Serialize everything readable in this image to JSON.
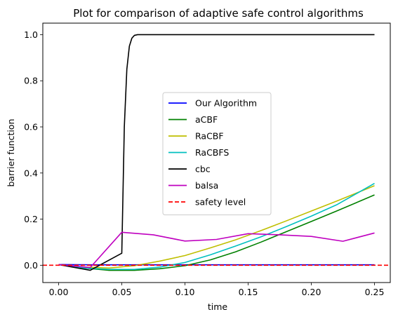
{
  "chart_data": {
    "type": "line",
    "title": "Plot for comparison of adaptive safe control algorithms",
    "xlabel": "time",
    "ylabel": "barrier function",
    "xlim": [
      -0.0125,
      0.2625
    ],
    "ylim": [
      -0.075,
      1.05
    ],
    "xticks": [
      0.0,
      0.05,
      0.1,
      0.15,
      0.2,
      0.25
    ],
    "xtick_labels": [
      "0.00",
      "0.05",
      "0.10",
      "0.15",
      "0.20",
      "0.25"
    ],
    "yticks": [
      0.0,
      0.2,
      0.4,
      0.6,
      0.8,
      1.0
    ],
    "ytick_labels": [
      "0.0",
      "0.2",
      "0.4",
      "0.6",
      "0.8",
      "1.0"
    ],
    "grid": false,
    "legend_position": "center",
    "series": [
      {
        "name": "Our Algorithm",
        "color": "#0000ff",
        "style": "solid",
        "x": [
          0.0,
          0.025,
          0.05,
          0.075,
          0.1,
          0.125,
          0.15,
          0.175,
          0.2,
          0.225,
          0.25
        ],
        "y": [
          0.003,
          0.002,
          0.002,
          0.002,
          0.002,
          0.002,
          0.002,
          0.002,
          0.002,
          0.002,
          0.002
        ]
      },
      {
        "name": "aCBF",
        "color": "#008000",
        "style": "solid",
        "x": [
          0.0,
          0.02,
          0.04,
          0.06,
          0.08,
          0.1,
          0.12,
          0.14,
          0.16,
          0.18,
          0.2,
          0.22,
          0.25
        ],
        "y": [
          0.003,
          -0.012,
          -0.022,
          -0.022,
          -0.015,
          -0.002,
          0.023,
          0.058,
          0.1,
          0.145,
          0.19,
          0.235,
          0.305
        ]
      },
      {
        "name": "RaCBF",
        "color": "#bfbf00",
        "style": "solid",
        "x": [
          0.0,
          0.02,
          0.04,
          0.06,
          0.08,
          0.1,
          0.12,
          0.14,
          0.16,
          0.18,
          0.2,
          0.22,
          0.25
        ],
        "y": [
          0.003,
          -0.008,
          -0.012,
          -0.002,
          0.018,
          0.042,
          0.075,
          0.11,
          0.15,
          0.192,
          0.235,
          0.278,
          0.345
        ]
      },
      {
        "name": "RaCBFS",
        "color": "#00bfbf",
        "style": "solid",
        "x": [
          0.0,
          0.02,
          0.04,
          0.06,
          0.08,
          0.1,
          0.12,
          0.14,
          0.16,
          0.18,
          0.2,
          0.22,
          0.25
        ],
        "y": [
          0.003,
          -0.012,
          -0.018,
          -0.018,
          -0.008,
          0.012,
          0.045,
          0.083,
          0.123,
          0.167,
          0.213,
          0.262,
          0.355
        ]
      },
      {
        "name": "cbc",
        "color": "#000000",
        "style": "solid",
        "x": [
          0.0,
          0.025,
          0.05,
          0.052,
          0.054,
          0.056,
          0.058,
          0.06,
          0.0625,
          0.075,
          0.1,
          0.125,
          0.15,
          0.175,
          0.2,
          0.225,
          0.25
        ],
        "y": [
          0.003,
          -0.022,
          0.052,
          0.6,
          0.85,
          0.95,
          0.985,
          0.997,
          1.0,
          1.0,
          1.0,
          1.0,
          1.0,
          1.0,
          1.0,
          1.0,
          1.0
        ]
      },
      {
        "name": "balsa",
        "color": "#bf00bf",
        "style": "solid",
        "x": [
          0.0,
          0.025,
          0.05,
          0.075,
          0.1,
          0.125,
          0.15,
          0.175,
          0.2,
          0.225,
          0.25
        ],
        "y": [
          0.003,
          -0.01,
          0.143,
          0.132,
          0.105,
          0.112,
          0.137,
          0.132,
          0.125,
          0.104,
          0.14
        ]
      },
      {
        "name": "safety level",
        "color": "#ff0000",
        "style": "dashed",
        "x": [
          -0.0125,
          0.2625
        ],
        "y": [
          0.0,
          0.0
        ]
      }
    ]
  }
}
